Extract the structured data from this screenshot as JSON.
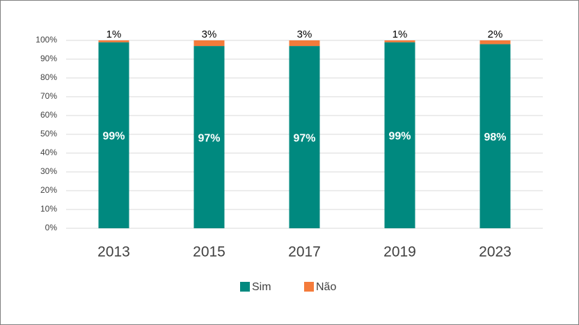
{
  "chart_data": {
    "type": "stacked_bar",
    "categories": [
      "2013",
      "2015",
      "2017",
      "2019",
      "2023"
    ],
    "series": [
      {
        "name": "Sim",
        "color": "#00897f",
        "values": [
          99,
          97,
          97,
          99,
          98
        ],
        "value_labels": [
          "99%",
          "97%",
          "97%",
          "99%",
          "98%"
        ]
      },
      {
        "name": "Não",
        "color": "#f47b3b",
        "values": [
          1,
          3,
          3,
          1,
          2
        ],
        "value_labels": [
          "1%",
          "3%",
          "3%",
          "1%",
          "2%"
        ]
      }
    ],
    "ylim": [
      0,
      100
    ],
    "yticks": [
      {
        "value": 0,
        "label": "0%"
      },
      {
        "value": 10,
        "label": "10%"
      },
      {
        "value": 20,
        "label": "20%"
      },
      {
        "value": 30,
        "label": "30%"
      },
      {
        "value": 40,
        "label": "40%"
      },
      {
        "value": 50,
        "label": "50%"
      },
      {
        "value": 60,
        "label": "60%"
      },
      {
        "value": 70,
        "label": "70%"
      },
      {
        "value": 80,
        "label": "80%"
      },
      {
        "value": 90,
        "label": "90%"
      },
      {
        "value": 100,
        "label": "100%"
      }
    ],
    "grid": true,
    "legend": "bottom"
  }
}
